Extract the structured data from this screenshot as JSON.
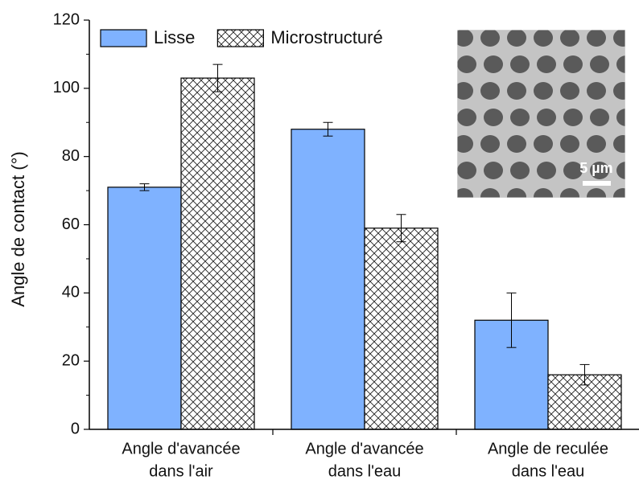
{
  "chart_data": {
    "type": "bar",
    "ylabel": "Angle de contact (°)",
    "categories": [
      [
        "Angle d'avancée",
        "dans l'air"
      ],
      [
        "Angle d'avancée",
        "dans l'eau"
      ],
      [
        "Angle de reculée",
        "dans l'eau"
      ]
    ],
    "series": [
      {
        "name": "Lisse",
        "color": "#7fb2ff",
        "values": [
          71,
          88,
          32
        ],
        "errors": [
          1,
          2,
          8
        ]
      },
      {
        "name": "Microstructuré",
        "color": "#000000",
        "pattern": "crosshatch",
        "values": [
          103,
          59,
          16
        ],
        "errors": [
          4,
          4,
          3
        ]
      }
    ],
    "ylim": [
      0,
      120
    ],
    "yticks": [
      0,
      20,
      40,
      60,
      80,
      100,
      120
    ],
    "annotation": "5 µm"
  }
}
